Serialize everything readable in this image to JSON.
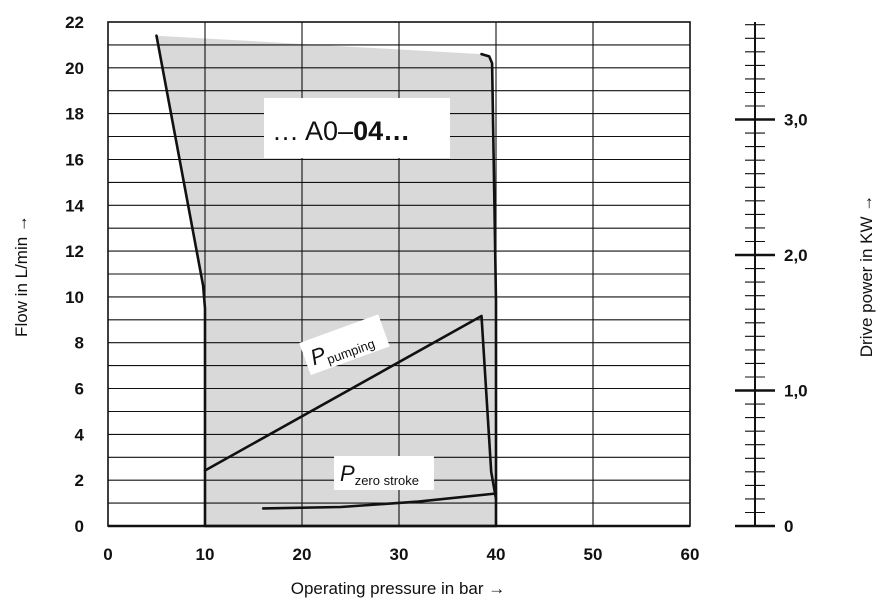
{
  "chart_data": {
    "type": "line",
    "title": "",
    "xlabel": "Operating pressure in bar →",
    "ylabel": "Flow in L/min →",
    "y2label": "Drive power in KW →",
    "xlim": [
      0,
      60
    ],
    "ylim": [
      0,
      22
    ],
    "y2lim": [
      0,
      3.72
    ],
    "xticks": [
      "0",
      "10",
      "20",
      "30",
      "40",
      "50",
      "60"
    ],
    "yticks": [
      "0",
      "2",
      "4",
      "6",
      "8",
      "10",
      "12",
      "14",
      "16",
      "18",
      "20",
      "22"
    ],
    "y2ticks": [
      {
        "value": 0,
        "label": "0"
      },
      {
        "value": 1.0,
        "label": "1,0"
      },
      {
        "value": 2.0,
        "label": "2,0"
      },
      {
        "value": 3.0,
        "label": "3,0"
      }
    ],
    "y2minor_step": 0.1,
    "grid": true,
    "box_label": {
      "prefix": "… A0–",
      "bold": "04…"
    },
    "series": [
      {
        "name": "",
        "axis": "flow",
        "fill": "#d9d9d9",
        "x": [
          5,
          9.8,
          10.0,
          10.0,
          40.0,
          40.0,
          39.6,
          39.3,
          38.5
        ],
        "y": [
          21.4,
          10.5,
          9.5,
          0,
          0,
          9.8,
          20.2,
          20.5,
          20.6
        ]
      },
      {
        "name": "P pumping",
        "axis": "power",
        "x": [
          10,
          38.5,
          39.5,
          40
        ],
        "y": [
          0.41,
          1.55,
          0.4,
          0.2
        ]
      },
      {
        "name": "P zero stroke",
        "axis": "power",
        "x": [
          16,
          24,
          32,
          40
        ],
        "y": [
          0.13,
          0.14,
          0.18,
          0.24
        ]
      }
    ],
    "annotations": [
      {
        "main": "P",
        "sub": "pumping"
      },
      {
        "main": "P",
        "sub": "zero stroke"
      }
    ]
  }
}
